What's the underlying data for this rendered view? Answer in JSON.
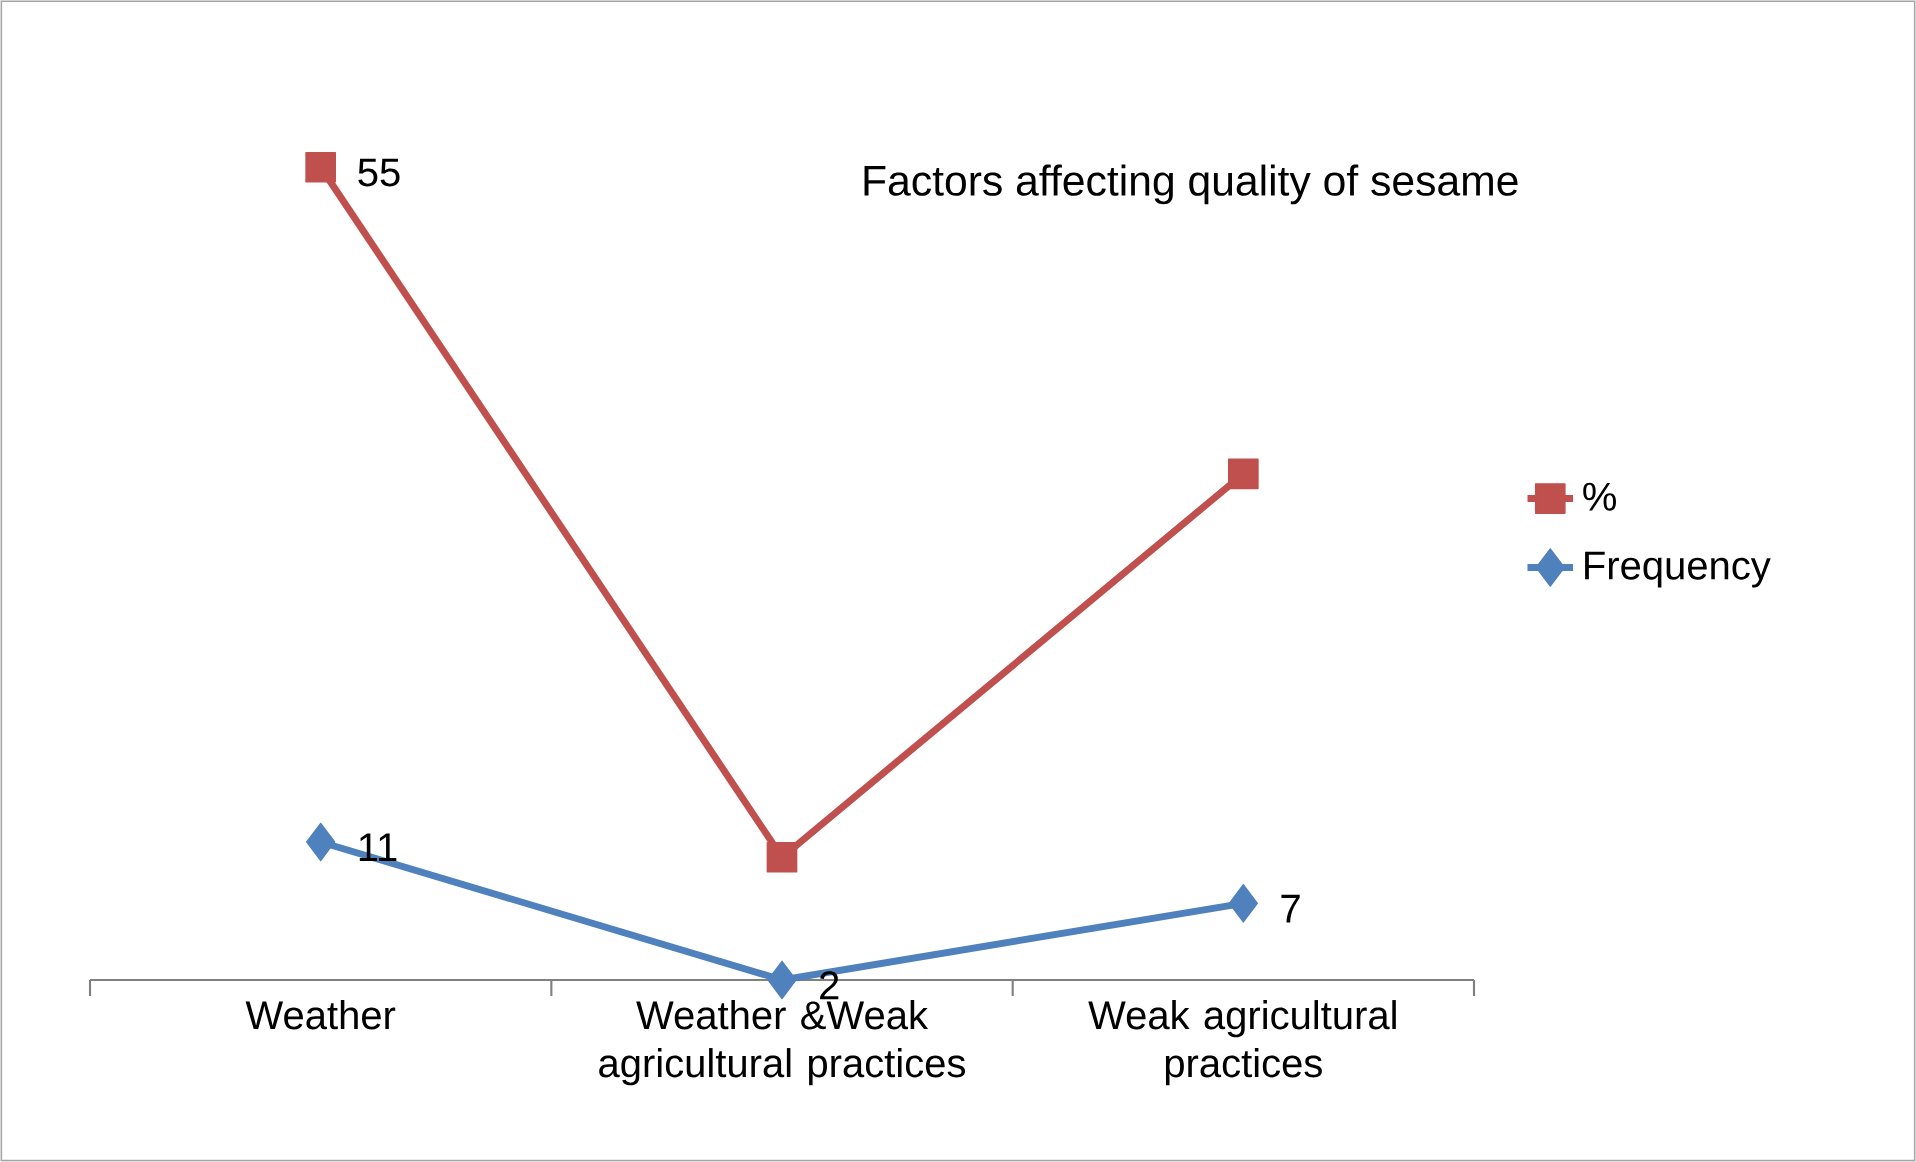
{
  "chart_data": {
    "type": "line",
    "title": "Factors affecting quality of sesame",
    "categories": [
      "Weather",
      "Weather &Weak agricultural practices",
      "Weak agricultural practices"
    ],
    "series": [
      {
        "name": "%",
        "color": "#c0504d",
        "marker": "square",
        "values": [
          55,
          10,
          35
        ],
        "value_labels": [
          "55",
          null,
          null
        ]
      },
      {
        "name": "Frequency",
        "color": "#4f81bd",
        "marker": "diamond",
        "values": [
          11,
          2,
          7
        ],
        "value_labels": [
          "11",
          "2",
          "7"
        ]
      }
    ],
    "tick_labels": "x",
    "legend": "right"
  }
}
